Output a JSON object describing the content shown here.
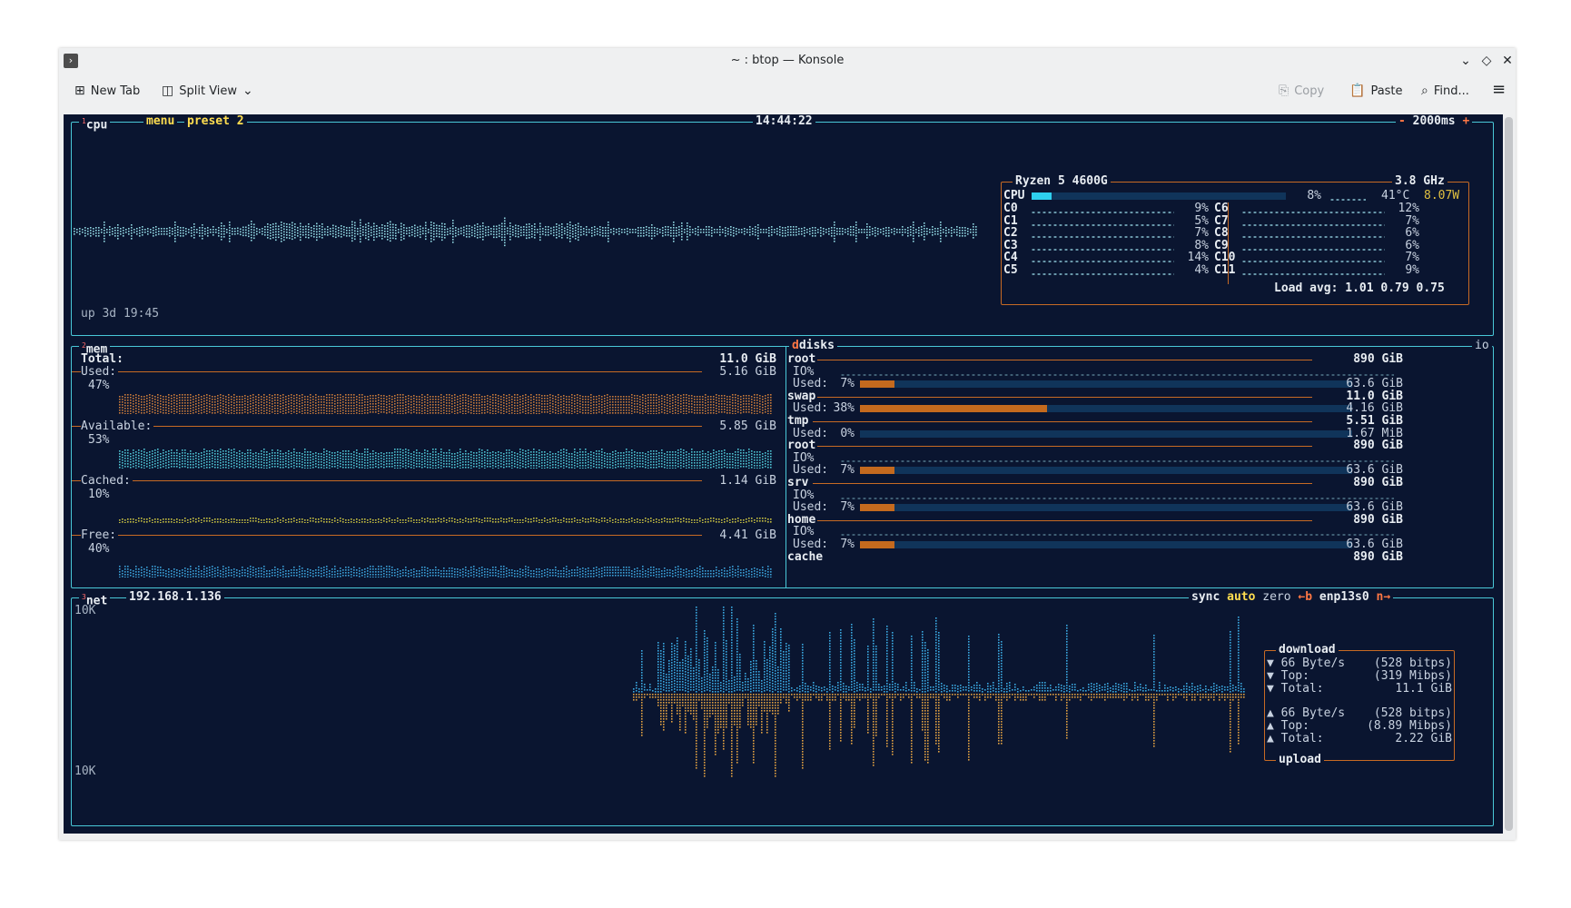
{
  "window": {
    "title": "~ : btop — Konsole"
  },
  "toolbar": {
    "new_tab": "New Tab",
    "split_view": "Split View",
    "copy": "Copy",
    "paste": "Paste",
    "find": "Find..."
  },
  "cpu": {
    "num": "1",
    "label": "cpu",
    "menu": "menu",
    "preset": "preset 2",
    "clock": "14:44:22",
    "refresh_minus": "-",
    "refresh": "2000ms",
    "refresh_plus": "+",
    "uptime": "up 3d 19:45",
    "model": "Ryzen 5 4600G",
    "freq": "3.8 GHz",
    "total": {
      "label": "CPU",
      "pct": "8%",
      "value": 0.08,
      "temp": "41°C",
      "watts": "8.07W"
    },
    "cores_left": [
      {
        "label": "C0",
        "pct": "9%"
      },
      {
        "label": "C1",
        "pct": "5%"
      },
      {
        "label": "C2",
        "pct": "7%"
      },
      {
        "label": "C3",
        "pct": "8%"
      },
      {
        "label": "C4",
        "pct": "14%"
      },
      {
        "label": "C5",
        "pct": "4%"
      }
    ],
    "cores_right": [
      {
        "label": "C6",
        "pct": "12%"
      },
      {
        "label": "C7",
        "pct": "7%"
      },
      {
        "label": "C8",
        "pct": "6%"
      },
      {
        "label": "C9",
        "pct": "6%"
      },
      {
        "label": "C10",
        "pct": "7%"
      },
      {
        "label": "C11",
        "pct": "9%"
      }
    ],
    "load_avg": "Load avg: 1.01 0.79 0.75"
  },
  "mem": {
    "num": "2",
    "label": "mem",
    "total": {
      "label": "Total:",
      "value": "11.0 GiB"
    },
    "used": {
      "label": "Used:",
      "value": "5.16 GiB",
      "pct": "47%"
    },
    "available": {
      "label": "Available:",
      "value": "5.85 GiB",
      "pct": "53%"
    },
    "cached": {
      "label": "Cached:",
      "value": "1.14 GiB",
      "pct": "10%"
    },
    "free": {
      "label": "Free:",
      "value": "4.41 GiB",
      "pct": "40%"
    }
  },
  "disks": {
    "label": "disks",
    "io": "io",
    "io_label": "IO%",
    "used_label": "Used:",
    "items": [
      {
        "name": "root",
        "size": "890 GiB",
        "io": true,
        "pct": "7%",
        "value": 0.07,
        "used": "63.6 GiB"
      },
      {
        "name": "swap",
        "size": "11.0 GiB",
        "io": false,
        "pct": "38%",
        "value": 0.38,
        "used": "4.16 GiB"
      },
      {
        "name": "tmp",
        "size": "5.51 GiB",
        "io": false,
        "pct": "0%",
        "value": 0.0,
        "used": "1.67 MiB"
      },
      {
        "name": "root",
        "size": "890 GiB",
        "io": true,
        "pct": "7%",
        "value": 0.07,
        "used": "63.6 GiB"
      },
      {
        "name": "srv",
        "size": "890 GiB",
        "io": true,
        "pct": "7%",
        "value": 0.07,
        "used": "63.6 GiB"
      },
      {
        "name": "home",
        "size": "890 GiB",
        "io": true,
        "pct": "7%",
        "value": 0.07,
        "used": "63.6 GiB"
      }
    ],
    "last": {
      "name": "cache",
      "size": "890 GiB"
    }
  },
  "net": {
    "num": "3",
    "label": "net",
    "ip": "192.168.1.136",
    "sync": "sync",
    "auto": "auto",
    "zero": "zero",
    "prev": "←b",
    "iface": "enp13s0",
    "next": "n→",
    "scale_top": "10K",
    "scale_bottom": "10K",
    "download": {
      "title": "download",
      "rate": "66 Byte/s",
      "bits": "(528 bitps)",
      "top_label": "Top:",
      "top": "(319 Mibps)",
      "total_label": "Total:",
      "total": "11.1 GiB"
    },
    "upload": {
      "title": "upload",
      "rate": "66 Byte/s",
      "bits": "(528 bitps)",
      "top_label": "Top:",
      "top": "(8.89 Mibps)",
      "total_label": "Total:",
      "total": "2.22 GiB"
    }
  },
  "colors": {
    "bg": "#0a1530",
    "frame": "#49c8d8",
    "accent": "#c76a24",
    "bar_fill": "#c46a1e",
    "cpu_bar": "#2ed0ee"
  }
}
